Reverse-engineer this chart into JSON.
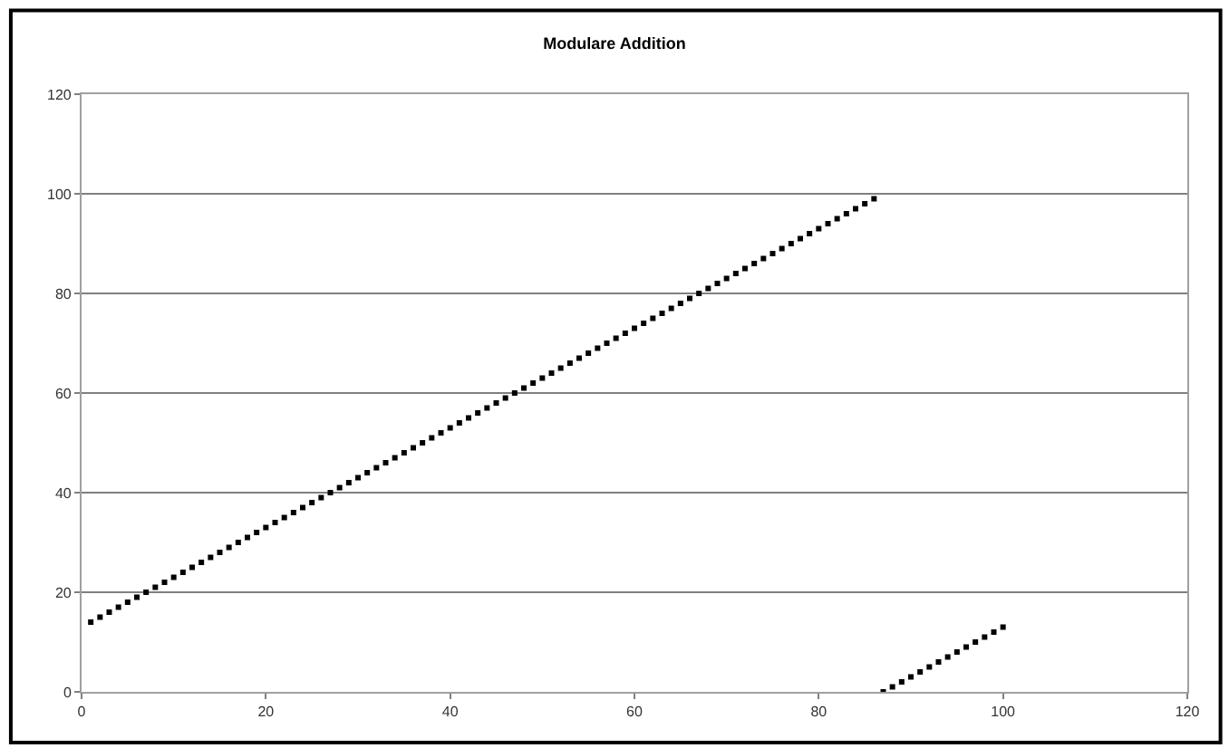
{
  "chart_data": {
    "type": "scatter",
    "title": "Modulare Addition",
    "x": [
      1,
      2,
      3,
      4,
      5,
      6,
      7,
      8,
      9,
      10,
      11,
      12,
      13,
      14,
      15,
      16,
      17,
      18,
      19,
      20,
      21,
      22,
      23,
      24,
      25,
      26,
      27,
      28,
      29,
      30,
      31,
      32,
      33,
      34,
      35,
      36,
      37,
      38,
      39,
      40,
      41,
      42,
      43,
      44,
      45,
      46,
      47,
      48,
      49,
      50,
      51,
      52,
      53,
      54,
      55,
      56,
      57,
      58,
      59,
      60,
      61,
      62,
      63,
      64,
      65,
      66,
      67,
      68,
      69,
      70,
      71,
      72,
      73,
      74,
      75,
      76,
      77,
      78,
      79,
      80,
      81,
      82,
      83,
      84,
      85,
      86,
      87,
      88,
      89,
      90,
      91,
      92,
      93,
      94,
      95,
      96,
      97,
      98,
      99,
      100
    ],
    "series": [
      {
        "color": "#000000",
        "values": [
          14,
          15,
          16,
          17,
          18,
          19,
          20,
          21,
          22,
          23,
          24,
          25,
          26,
          27,
          28,
          29,
          30,
          31,
          32,
          33,
          34,
          35,
          36,
          37,
          38,
          39,
          40,
          41,
          42,
          43,
          44,
          45,
          46,
          47,
          48,
          49,
          50,
          51,
          52,
          53,
          54,
          55,
          56,
          57,
          58,
          59,
          60,
          61,
          62,
          63,
          64,
          65,
          66,
          67,
          68,
          69,
          70,
          71,
          72,
          73,
          74,
          75,
          76,
          77,
          78,
          79,
          80,
          81,
          82,
          83,
          84,
          85,
          86,
          87,
          88,
          89,
          90,
          91,
          92,
          93,
          94,
          95,
          96,
          97,
          98,
          99,
          0,
          1,
          2,
          3,
          4,
          5,
          6,
          7,
          8,
          9,
          10,
          11,
          12,
          13
        ]
      }
    ],
    "xlim": [
      0,
      120
    ],
    "xticks": [
      0,
      20,
      40,
      60,
      80,
      100,
      120
    ],
    "ylim": [
      0,
      120
    ],
    "yticks": [
      0,
      20,
      40,
      60,
      80,
      100,
      120
    ],
    "grid": "y",
    "marker": "square"
  }
}
